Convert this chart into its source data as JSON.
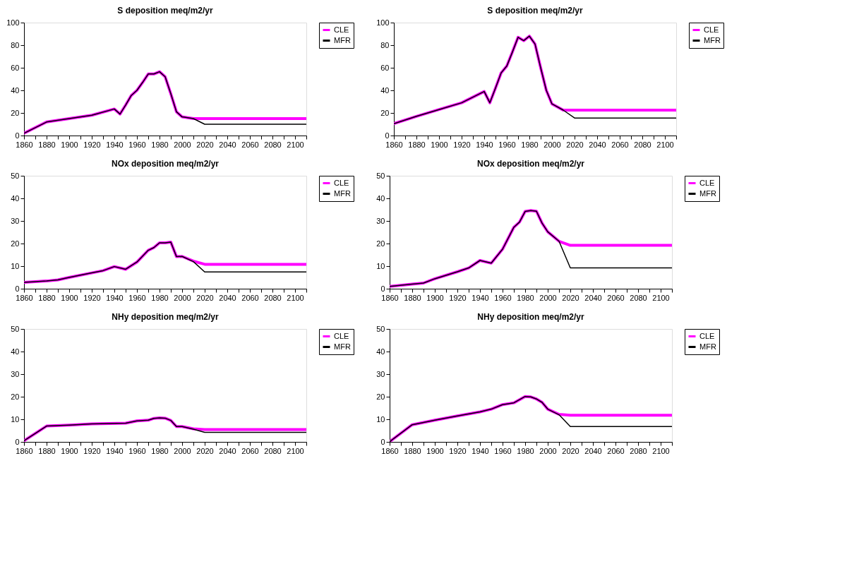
{
  "chart_data": [
    {
      "type": "line",
      "title": "S deposition meq/m2/yr",
      "xlim": [
        1860,
        2110
      ],
      "ylim": [
        0,
        100
      ],
      "yticks": [
        0,
        20,
        40,
        60,
        80,
        100
      ],
      "xticks": [
        1860,
        {
          "value": 1870,
          "label": null
        },
        1880,
        {
          "value": 1890,
          "label": null
        },
        1900,
        {
          "value": 1910,
          "label": null
        },
        1920,
        {
          "value": 1930,
          "label": null
        },
        1940,
        {
          "value": 1950,
          "label": null
        },
        1960,
        {
          "value": 1970,
          "label": null
        },
        1980,
        {
          "value": 1990,
          "label": null
        },
        2000,
        {
          "value": 2010,
          "label": null
        },
        2020,
        {
          "value": 2030,
          "label": null
        },
        2040,
        {
          "value": 2050,
          "label": null
        },
        2060,
        {
          "value": 2070,
          "label": null
        },
        2080,
        {
          "value": 2090,
          "label": null
        },
        2100,
        {
          "value": 2110,
          "label": null
        }
      ],
      "grid": false,
      "legend": "right",
      "marker": "none",
      "line_style": "solid",
      "series": [
        {
          "name": "CLE",
          "color": "#ff00ff",
          "x": [
            1860,
            1870,
            1880,
            1900,
            1920,
            1940,
            1945,
            1950,
            1955,
            1960,
            1965,
            1970,
            1975,
            1980,
            1985,
            1990,
            1995,
            2000,
            2010,
            2020,
            2110
          ],
          "values": [
            2,
            7,
            12,
            15,
            18,
            23.5,
            19,
            27,
            35.5,
            40,
            47,
            54.5,
            54.5,
            56.5,
            52,
            37,
            21,
            16.5,
            15,
            15,
            15
          ]
        },
        {
          "name": "MFR",
          "color": "#000000",
          "x": [
            1860,
            1870,
            1880,
            1900,
            1920,
            1940,
            1945,
            1950,
            1955,
            1960,
            1965,
            1970,
            1975,
            1980,
            1985,
            1990,
            1995,
            2000,
            2010,
            2020,
            2110
          ],
          "values": [
            2,
            7,
            12,
            15,
            18,
            23.5,
            19,
            27,
            35.5,
            40,
            47,
            54.5,
            54.5,
            56.5,
            52,
            37,
            21,
            16.5,
            15,
            10,
            10
          ]
        }
      ]
    },
    {
      "type": "line",
      "title": "S deposition meq/m2/yr",
      "xlim": [
        1860,
        2110
      ],
      "ylim": [
        0,
        100
      ],
      "yticks": [
        0,
        20,
        40,
        60,
        80,
        100
      ],
      "xticks": [
        1860,
        {
          "value": 1870,
          "label": null
        },
        1880,
        {
          "value": 1890,
          "label": null
        },
        1900,
        {
          "value": 1910,
          "label": null
        },
        1920,
        {
          "value": 1930,
          "label": null
        },
        1940,
        {
          "value": 1950,
          "label": null
        },
        1960,
        {
          "value": 1970,
          "label": null
        },
        1980,
        {
          "value": 1990,
          "label": null
        },
        2000,
        {
          "value": 2010,
          "label": null
        },
        2020,
        {
          "value": 2030,
          "label": null
        },
        2040,
        {
          "value": 2050,
          "label": null
        },
        2060,
        {
          "value": 2070,
          "label": null
        },
        2080,
        {
          "value": 2090,
          "label": null
        },
        2100,
        {
          "value": 2110,
          "label": null
        }
      ],
      "grid": false,
      "legend": "right",
      "marker": "none",
      "line_style": "solid",
      "series": [
        {
          "name": "CLE",
          "color": "#ff00ff",
          "x": [
            1860,
            1880,
            1900,
            1920,
            1940,
            1945,
            1950,
            1955,
            1960,
            1965,
            1970,
            1975,
            1980,
            1985,
            1990,
            1995,
            2000,
            2010,
            2020,
            2110
          ],
          "values": [
            10.5,
            17,
            23,
            29,
            39,
            29,
            42,
            55.5,
            61.5,
            74,
            87,
            84,
            88,
            81,
            60,
            40,
            28,
            22.5,
            22.5,
            22.5
          ]
        },
        {
          "name": "MFR",
          "color": "#000000",
          "x": [
            1860,
            1880,
            1900,
            1920,
            1940,
            1945,
            1950,
            1955,
            1960,
            1965,
            1970,
            1975,
            1980,
            1985,
            1990,
            1995,
            2000,
            2010,
            2020,
            2110
          ],
          "values": [
            10.5,
            17,
            23,
            29,
            39,
            29,
            42,
            55.5,
            61.5,
            74,
            87,
            84,
            88,
            81,
            60,
            40,
            28,
            22.5,
            15.5,
            15.5
          ]
        }
      ]
    },
    {
      "type": "line",
      "title": "NOx deposition meq/m2/yr",
      "xlim": [
        1860,
        2110
      ],
      "ylim": [
        0,
        50
      ],
      "yticks": [
        0,
        10,
        20,
        30,
        40,
        50
      ],
      "xticks": [
        1860,
        {
          "value": 1870,
          "label": null
        },
        1880,
        {
          "value": 1890,
          "label": null
        },
        1900,
        {
          "value": 1910,
          "label": null
        },
        1920,
        {
          "value": 1930,
          "label": null
        },
        1940,
        {
          "value": 1950,
          "label": null
        },
        1960,
        {
          "value": 1970,
          "label": null
        },
        1980,
        {
          "value": 1990,
          "label": null
        },
        2000,
        {
          "value": 2010,
          "label": null
        },
        2020,
        {
          "value": 2030,
          "label": null
        },
        2040,
        {
          "value": 2050,
          "label": null
        },
        2060,
        {
          "value": 2070,
          "label": null
        },
        2080,
        {
          "value": 2090,
          "label": null
        },
        2100,
        {
          "value": 2110,
          "label": null
        }
      ],
      "grid": false,
      "legend": "right",
      "marker": "none",
      "line_style": "solid",
      "series": [
        {
          "name": "CLE",
          "color": "#ff00ff",
          "x": [
            1860,
            1880,
            1890,
            1900,
            1920,
            1930,
            1940,
            1950,
            1960,
            1970,
            1975,
            1980,
            1985,
            1990,
            1995,
            2000,
            2010,
            2020,
            2110
          ],
          "values": [
            2.8,
            3.4,
            3.9,
            5,
            7,
            8,
            9.8,
            8.6,
            11.8,
            17,
            18.2,
            20.3,
            20.3,
            20.6,
            14.2,
            14.3,
            12.2,
            10.8,
            10.8
          ]
        },
        {
          "name": "MFR",
          "color": "#000000",
          "x": [
            1860,
            1880,
            1890,
            1900,
            1920,
            1930,
            1940,
            1950,
            1960,
            1970,
            1975,
            1980,
            1985,
            1990,
            1995,
            2000,
            2010,
            2020,
            2110
          ],
          "values": [
            2.8,
            3.4,
            3.9,
            5,
            7,
            8,
            9.8,
            8.6,
            11.8,
            17,
            18.2,
            20.3,
            20.3,
            20.6,
            14.2,
            14.3,
            12,
            7.4,
            7.4
          ]
        }
      ]
    },
    {
      "type": "line",
      "title": "NOx deposition meq/m2/yr",
      "xlim": [
        1860,
        2110
      ],
      "ylim": [
        0,
        50
      ],
      "yticks": [
        0,
        10,
        20,
        30,
        40,
        50
      ],
      "xticks": [
        1860,
        {
          "value": 1870,
          "label": null
        },
        1880,
        {
          "value": 1890,
          "label": null
        },
        1900,
        {
          "value": 1910,
          "label": null
        },
        1920,
        {
          "value": 1930,
          "label": null
        },
        1940,
        {
          "value": 1950,
          "label": null
        },
        1960,
        {
          "value": 1970,
          "label": null
        },
        1980,
        {
          "value": 1990,
          "label": null
        },
        2000,
        {
          "value": 2010,
          "label": null
        },
        2020,
        {
          "value": 2030,
          "label": null
        },
        2040,
        {
          "value": 2050,
          "label": null
        },
        2060,
        {
          "value": 2070,
          "label": null
        },
        2080,
        {
          "value": 2090,
          "label": null
        },
        2100,
        {
          "value": 2110,
          "label": null
        }
      ],
      "grid": false,
      "legend": "right",
      "marker": "none",
      "line_style": "solid",
      "series": [
        {
          "name": "CLE",
          "color": "#ff00ff",
          "x": [
            1860,
            1880,
            1890,
            1900,
            1920,
            1930,
            1940,
            1950,
            1960,
            1970,
            1975,
            1980,
            1985,
            1990,
            1995,
            2000,
            2010,
            2020,
            2110
          ],
          "values": [
            1,
            2,
            2.5,
            4.4,
            7.5,
            9.2,
            12.5,
            11.3,
            17.5,
            27.2,
            29.5,
            34.2,
            34.6,
            34.3,
            29,
            25.2,
            21,
            19.2,
            19.2
          ]
        },
        {
          "name": "MFR",
          "color": "#000000",
          "x": [
            1860,
            1880,
            1890,
            1900,
            1920,
            1930,
            1940,
            1950,
            1960,
            1970,
            1975,
            1980,
            1985,
            1990,
            1995,
            2000,
            2010,
            2020,
            2110
          ],
          "values": [
            1,
            2,
            2.5,
            4.4,
            7.5,
            9.2,
            12.5,
            11.3,
            17.5,
            27.2,
            29.5,
            34.2,
            34.6,
            34.3,
            29,
            25.2,
            21,
            9.2,
            9.2
          ]
        }
      ]
    },
    {
      "type": "line",
      "title": "NHy deposition meq/m2/yr",
      "xlim": [
        1860,
        2110
      ],
      "ylim": [
        0,
        50
      ],
      "yticks": [
        0,
        10,
        20,
        30,
        40,
        50
      ],
      "xticks": [
        1860,
        {
          "value": 1870,
          "label": null
        },
        1880,
        {
          "value": 1890,
          "label": null
        },
        1900,
        {
          "value": 1910,
          "label": null
        },
        1920,
        {
          "value": 1930,
          "label": null
        },
        1940,
        {
          "value": 1950,
          "label": null
        },
        1960,
        {
          "value": 1970,
          "label": null
        },
        1980,
        {
          "value": 1990,
          "label": null
        },
        2000,
        {
          "value": 2010,
          "label": null
        },
        2020,
        {
          "value": 2030,
          "label": null
        },
        2040,
        {
          "value": 2050,
          "label": null
        },
        2060,
        {
          "value": 2070,
          "label": null
        },
        2080,
        {
          "value": 2090,
          "label": null
        },
        2100,
        {
          "value": 2110,
          "label": null
        }
      ],
      "grid": false,
      "legend": "right",
      "marker": "none",
      "line_style": "solid",
      "series": [
        {
          "name": "CLE",
          "color": "#ff00ff",
          "x": [
            1860,
            1880,
            1900,
            1920,
            1950,
            1960,
            1970,
            1975,
            1980,
            1985,
            1990,
            1995,
            2000,
            2010,
            2020,
            2110
          ],
          "values": [
            0.5,
            7,
            7.4,
            8,
            8.3,
            9.3,
            9.6,
            10.4,
            10.6,
            10.5,
            9.5,
            6.8,
            6.8,
            5.8,
            5.5,
            5.5
          ]
        },
        {
          "name": "MFR",
          "color": "#000000",
          "x": [
            1860,
            1880,
            1900,
            1920,
            1950,
            1960,
            1970,
            1975,
            1980,
            1985,
            1990,
            1995,
            2000,
            2010,
            2020,
            2110
          ],
          "values": [
            0.5,
            7,
            7.4,
            8,
            8.3,
            9.3,
            9.6,
            10.4,
            10.6,
            10.5,
            9.5,
            6.8,
            6.8,
            5.6,
            4.2,
            4.2
          ]
        }
      ]
    },
    {
      "type": "line",
      "title": "NHy deposition meq/m2/yr",
      "xlim": [
        1860,
        2110
      ],
      "ylim": [
        0,
        50
      ],
      "yticks": [
        0,
        10,
        20,
        30,
        40,
        50
      ],
      "xticks": [
        1860,
        {
          "value": 1870,
          "label": null
        },
        1880,
        {
          "value": 1890,
          "label": null
        },
        1900,
        {
          "value": 1910,
          "label": null
        },
        1920,
        {
          "value": 1930,
          "label": null
        },
        1940,
        {
          "value": 1950,
          "label": null
        },
        1960,
        {
          "value": 1970,
          "label": null
        },
        1980,
        {
          "value": 1990,
          "label": null
        },
        2000,
        {
          "value": 2010,
          "label": null
        },
        2020,
        {
          "value": 2030,
          "label": null
        },
        2040,
        {
          "value": 2050,
          "label": null
        },
        2060,
        {
          "value": 2070,
          "label": null
        },
        2080,
        {
          "value": 2090,
          "label": null
        },
        2100,
        {
          "value": 2110,
          "label": null
        }
      ],
      "grid": false,
      "legend": "right",
      "marker": "none",
      "line_style": "solid",
      "series": [
        {
          "name": "CLE",
          "color": "#ff00ff",
          "x": [
            1860,
            1880,
            1900,
            1920,
            1940,
            1950,
            1960,
            1970,
            1980,
            1985,
            1990,
            1995,
            2000,
            2010,
            2020,
            2110
          ],
          "values": [
            0.1,
            7.6,
            9.6,
            11.5,
            13.3,
            14.5,
            16.5,
            17.3,
            20.1,
            19.9,
            19,
            17.5,
            14.5,
            12.2,
            11.8,
            11.8
          ]
        },
        {
          "name": "MFR",
          "color": "#000000",
          "x": [
            1860,
            1880,
            1900,
            1920,
            1940,
            1950,
            1960,
            1970,
            1980,
            1985,
            1990,
            1995,
            2000,
            2010,
            2020,
            2110
          ],
          "values": [
            0.1,
            7.6,
            9.6,
            11.5,
            13.3,
            14.5,
            16.5,
            17.3,
            20.1,
            19.9,
            19,
            17.5,
            14.5,
            12,
            6.8,
            6.8
          ]
        }
      ]
    }
  ]
}
